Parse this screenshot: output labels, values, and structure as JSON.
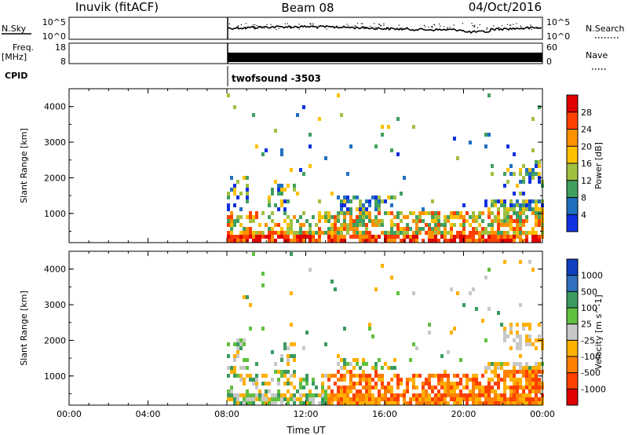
{
  "header": {
    "station": "Inuvik (fitACF)",
    "beam": "Beam 08",
    "date": "04/Oct/2016"
  },
  "top_panels": {
    "nsky_label": "N.Sky",
    "nsky_ticks": [
      "10^5",
      "10^0"
    ],
    "nsearch_label": "N.Search",
    "nsearch_ticks": [
      "10^5",
      "10^0"
    ],
    "freq_label": "Freq.",
    "freq_unit": "[MHz]",
    "freq_ticks": [
      "18",
      "8"
    ],
    "nave_label": "Nave",
    "nave_ticks": [
      "60",
      "0"
    ],
    "cpid_label": "CPID",
    "cpid_text": "twofsound -3503"
  },
  "chart_data": [
    {
      "type": "heatmap",
      "name": "power",
      "ylabel": "Slant Range [km]",
      "ylim": [
        180,
        4500
      ],
      "yticks": [
        1000,
        2000,
        3000,
        4000
      ],
      "xlim_hours": [
        0,
        24
      ],
      "data_start_hour": 8,
      "colorbar_label": "Power [dB]",
      "colorbar_ticks": [
        "28",
        "24",
        "20",
        "16",
        "12",
        "8",
        "4"
      ],
      "colorbar_colors": [
        "#e00000",
        "#ff4000",
        "#ff9000",
        "#ffc000",
        "#a0c040",
        "#40a060",
        "#1f6fbf",
        "#1030e0"
      ]
    },
    {
      "type": "heatmap",
      "name": "velocity",
      "ylabel": "Slant Range [km]",
      "ylim": [
        180,
        4500
      ],
      "yticks": [
        1000,
        2000,
        3000,
        4000
      ],
      "xlim_hours": [
        0,
        24
      ],
      "data_start_hour": 8,
      "colorbar_label": "Velocity [m s^-1]",
      "colorbar_ticks": [
        "1000",
        "500",
        "100",
        "25",
        "-25",
        "-100",
        "-500",
        "-1000"
      ],
      "colorbar_colors": [
        "#1040c0",
        "#3070c0",
        "#3a9a60",
        "#60c040",
        "#c8c8c8",
        "#ffb000",
        "#ff8000",
        "#ff4000",
        "#e00000"
      ]
    }
  ],
  "xaxis": {
    "label": "Time UT",
    "ticks": [
      "00:00",
      "04:00",
      "08:00",
      "12:00",
      "16:00",
      "20:00",
      "00:00"
    ]
  }
}
